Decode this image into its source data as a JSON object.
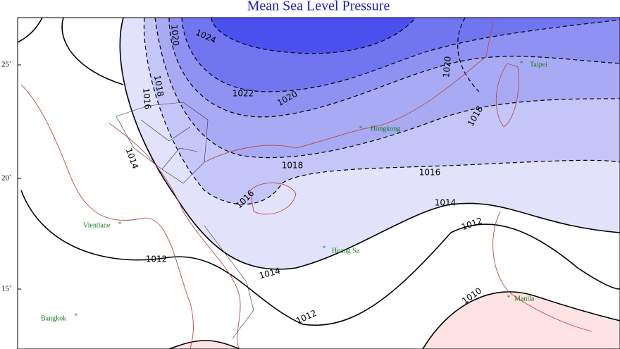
{
  "title": "Mean Sea Level Pressure",
  "latitude_labels": [
    "25˚",
    "20˚",
    "15˚"
  ],
  "cities": [
    "Taipei",
    "Hongkong",
    "Vientiane",
    "Hoang Sa",
    "Bangkok",
    "Manila"
  ],
  "isobar_labels": [
    1024,
    1020,
    1022,
    1020,
    1018,
    1016,
    1014,
    1018,
    1016,
    1016,
    1014,
    1012,
    1012,
    1014,
    1012,
    1010,
    1020,
    1018
  ]
}
